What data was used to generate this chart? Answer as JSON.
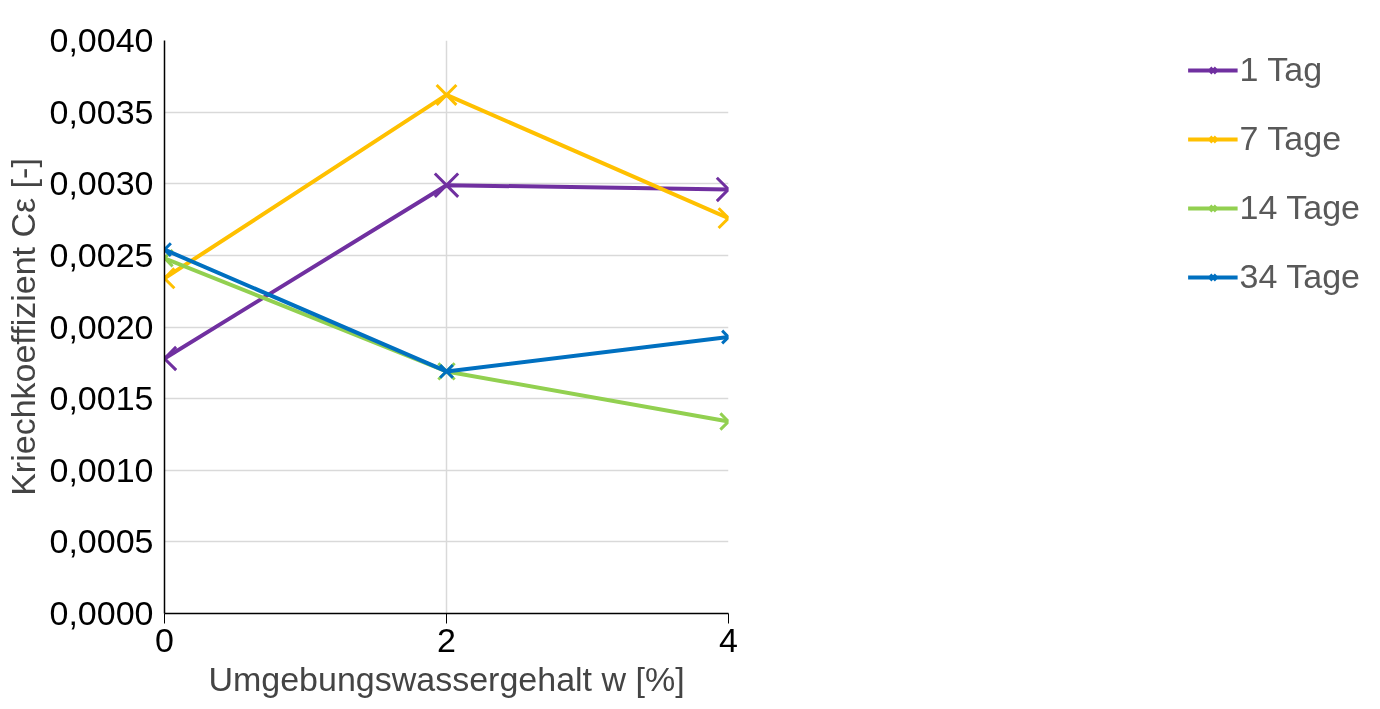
{
  "chart_data": {
    "type": "line",
    "xlabel": "Umgebungswassergehalt w [%]",
    "ylabel": "Kriechkoeffizient Cε [-]",
    "x": [
      0,
      2,
      4
    ],
    "series": [
      {
        "name": "1 Tag",
        "color": "#7030a0",
        "values": [
          0.00178,
          0.00299,
          0.00296
        ]
      },
      {
        "name": "7 Tage",
        "color": "#ffc000",
        "values": [
          0.00234,
          0.00362,
          0.00276
        ]
      },
      {
        "name": "14 Tage",
        "color": "#92d050",
        "values": [
          0.00248,
          0.00169,
          0.00134
        ]
      },
      {
        "name": "34 Tage",
        "color": "#0070c0",
        "values": [
          0.00254,
          0.00169,
          0.00193
        ]
      }
    ],
    "xlim": [
      0,
      4
    ],
    "xticks": [
      0,
      2,
      4
    ],
    "ylim": [
      0,
      0.004
    ],
    "yticks": [
      {
        "value": 0,
        "label": "0,0000"
      },
      {
        "value": 0.0005,
        "label": "0,0005"
      },
      {
        "value": 0.001,
        "label": "0,0010"
      },
      {
        "value": 0.0015,
        "label": "0,0015"
      },
      {
        "value": 0.002,
        "label": "0,0020"
      },
      {
        "value": 0.0025,
        "label": "0,0025"
      },
      {
        "value": 0.003,
        "label": "0,0030"
      },
      {
        "value": 0.0035,
        "label": "0,0035"
      },
      {
        "value": 0.004,
        "label": "0,0040"
      }
    ],
    "grid": true,
    "legend": "right",
    "marker": "cross",
    "line_style": "solid"
  }
}
